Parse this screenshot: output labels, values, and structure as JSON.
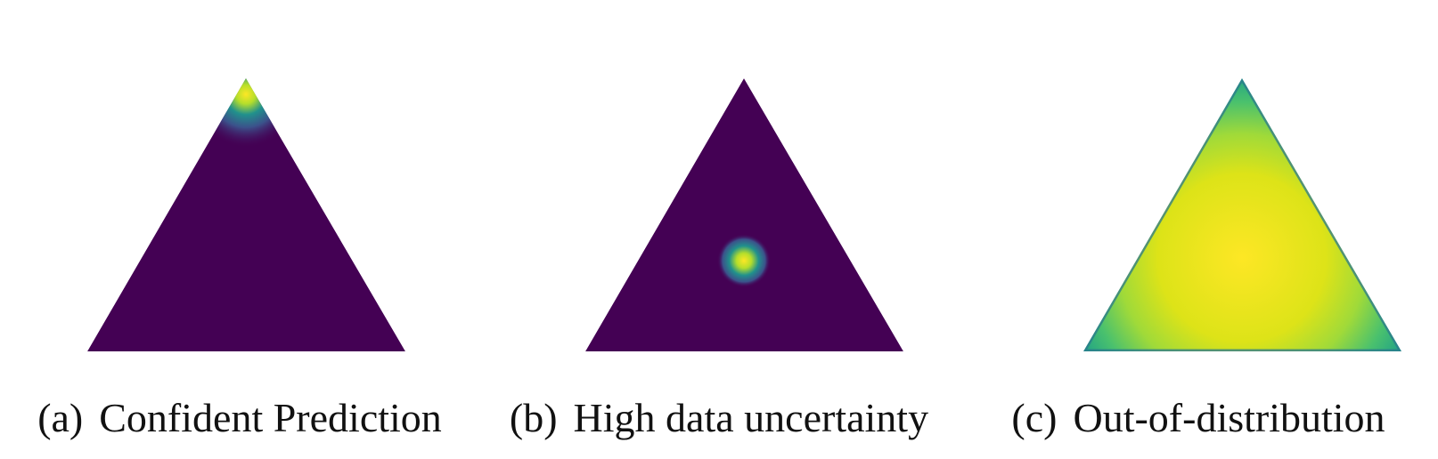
{
  "panels": [
    {
      "tag": "(a)",
      "caption": "Confident Prediction",
      "background_color": "#440154",
      "density": "concentrated at top corner"
    },
    {
      "tag": "(b)",
      "caption": "High data uncertainty",
      "background_color": "#440154",
      "density": "concentrated at center"
    },
    {
      "tag": "(c)",
      "caption": "Out-of-distribution",
      "background_color": "#fde725",
      "density": "spread over whole simplex"
    }
  ],
  "colormap": [
    "#440154",
    "#3b528b",
    "#21918c",
    "#5ec962",
    "#fde725"
  ]
}
